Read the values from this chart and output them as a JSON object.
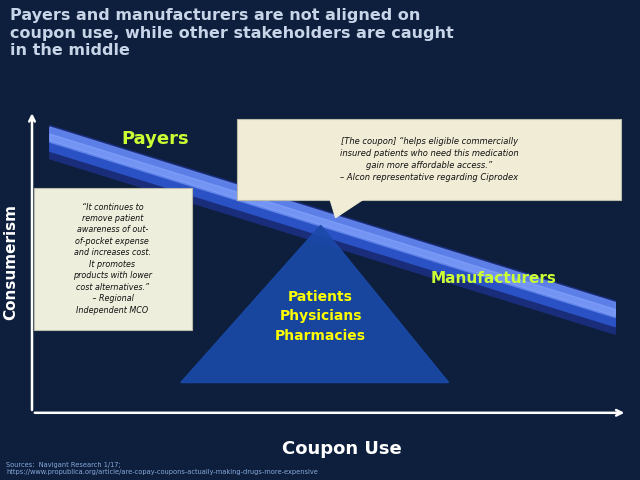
{
  "title": "Payers and manufacturers are not aligned on\ncoupon use, while other stakeholders are caught\nin the middle",
  "title_color": "#c8d4e8",
  "title_bg": "#0d1f3c",
  "title_fontsize": 11.5,
  "chart_bg": "#4a8ec2",
  "ylabel": "Consumerism",
  "xlabel": "Coupon Use",
  "payers_label": "Payers",
  "manufacturers_label": "Manufacturers",
  "payers_color": "#ccff33",
  "manufacturers_color": "#ccff33",
  "triangle_label": "Patients\nPhysicians\nPharmacies",
  "triangle_color": "#1a4aaa",
  "triangle_text_color": "#ffff00",
  "band_dark": "#1a2d7a",
  "band_mid": "#2a52c4",
  "band_light": "#6688ee",
  "band_highlight": "#8aaaff",
  "left_box_text": "“It continues to\nremove patient\nawareness of out-\nof-pocket expense\nand increases cost.\nIt promotes\nproducts with lower\ncost alternatives.”\n – Regional\nIndependent MCO",
  "left_box_bg": "#eeeedd",
  "right_box_text": "[The coupon] “helps eligible commercially\ninsured patients who need this medication\ngain more affordable access.”\n– Alcon representative regarding Ciprodex",
  "right_box_bg": "#f0ecd5",
  "sources_text": "Sources:  Navigant Research 1/17;\nhttps://www.propublica.org/article/are-copay-coupons-actually-making-drugs-more-expensive",
  "sources_color": "#88aadd"
}
